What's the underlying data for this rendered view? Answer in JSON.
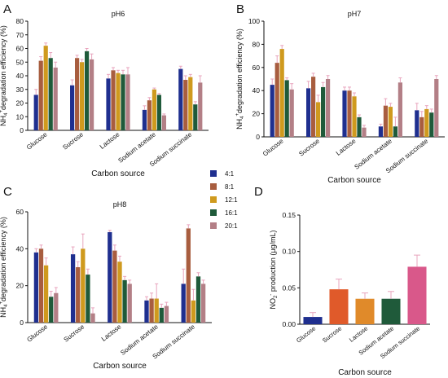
{
  "colors": {
    "series": [
      "#1f2f8f",
      "#a85d3f",
      "#cf9a1e",
      "#1f5a3a",
      "#b37f86"
    ],
    "panel_d": [
      "#1f2f8f",
      "#e05a2a",
      "#e08a2a",
      "#1f5a3a",
      "#d9588a"
    ],
    "error": "#e8a4bd"
  },
  "legend": [
    "4:1",
    "8:1",
    "12:1",
    "16:1",
    "20:1"
  ],
  "chart_data": [
    {
      "panel": "A",
      "type": "bar",
      "title": "pH6",
      "ylabel": "NH4+degradation efficiency (%)",
      "xlabel": "Carbon source",
      "ylim": [
        0,
        80
      ],
      "yticks": [
        0,
        10,
        20,
        30,
        40,
        50,
        60,
        70,
        80
      ],
      "categories": [
        "Glucose",
        "Sucrose",
        "Lactose",
        "Sodium acetate",
        "Sodium succinate"
      ],
      "series": [
        {
          "name": "4:1",
          "values": [
            26,
            33,
            38,
            15,
            45
          ],
          "errors": [
            4,
            4,
            3,
            3,
            2
          ]
        },
        {
          "name": "8:1",
          "values": [
            51,
            53,
            44,
            22,
            37
          ],
          "errors": [
            3,
            2,
            2,
            2,
            3
          ]
        },
        {
          "name": "12:1",
          "values": [
            62,
            50,
            42,
            30,
            39
          ],
          "errors": [
            2,
            2,
            2,
            1,
            2
          ]
        },
        {
          "name": "16:1",
          "values": [
            53,
            58,
            41,
            26,
            19
          ],
          "errors": [
            4,
            2,
            3,
            1,
            2
          ]
        },
        {
          "name": "20:1",
          "values": [
            46,
            52,
            41,
            11,
            35
          ],
          "errors": [
            4,
            4,
            5,
            1,
            5
          ]
        }
      ]
    },
    {
      "panel": "B",
      "type": "bar",
      "title": "pH7",
      "ylabel": "NH4+degradation efficiency (%)",
      "xlabel": "Carbon source",
      "ylim": [
        0,
        100
      ],
      "yticks": [
        0,
        20,
        40,
        60,
        80,
        100
      ],
      "categories": [
        "Glucose",
        "Sucrose",
        "Lactose",
        "Sodium acetate",
        "Sodium succinate"
      ],
      "series": [
        {
          "name": "4:1",
          "values": [
            45,
            42,
            40,
            9,
            23
          ],
          "errors": [
            5,
            6,
            3,
            2,
            6
          ]
        },
        {
          "name": "8:1",
          "values": [
            64,
            52,
            40,
            27,
            17
          ],
          "errors": [
            6,
            3,
            3,
            6,
            5
          ]
        },
        {
          "name": "12:1",
          "values": [
            76,
            30,
            35,
            26,
            24
          ],
          "errors": [
            3,
            6,
            3,
            3,
            3
          ]
        },
        {
          "name": "16:1",
          "values": [
            49,
            43,
            17,
            9,
            21
          ],
          "errors": [
            2,
            4,
            2,
            8,
            3
          ]
        },
        {
          "name": "20:1",
          "values": [
            41,
            50,
            8,
            47,
            50
          ],
          "errors": [
            5,
            3,
            2,
            4,
            3
          ]
        }
      ]
    },
    {
      "panel": "C",
      "type": "bar",
      "title": "pH8",
      "ylabel": "NH4+degradation efficiency (%)",
      "xlabel": "Carbon source",
      "ylim": [
        0,
        60
      ],
      "yticks": [
        0,
        20,
        40,
        60
      ],
      "categories": [
        "Glucose",
        "Sucrose",
        "Lactose",
        "Sodium acetate",
        "Sodium succinate"
      ],
      "series": [
        {
          "name": "4:1",
          "values": [
            38,
            37,
            49,
            12,
            21
          ],
          "errors": [
            2,
            4,
            1,
            2,
            8
          ]
        },
        {
          "name": "8:1",
          "values": [
            40,
            30,
            39,
            13,
            51
          ],
          "errors": [
            2,
            3,
            3,
            3,
            2
          ]
        },
        {
          "name": "12:1",
          "values": [
            31,
            40,
            33,
            13,
            12
          ],
          "errors": [
            4,
            8,
            3,
            8,
            6
          ]
        },
        {
          "name": "16:1",
          "values": [
            14,
            26,
            23,
            8,
            25
          ],
          "errors": [
            3,
            3,
            2,
            2,
            2
          ]
        },
        {
          "name": "20:1",
          "values": [
            16,
            5,
            21,
            9,
            21
          ],
          "errors": [
            3,
            3,
            2,
            2,
            2
          ]
        }
      ]
    },
    {
      "panel": "D",
      "type": "bar",
      "title": "",
      "ylabel": "NO2- production (μg/mL)",
      "xlabel": "Carbon source",
      "ylim": [
        0,
        0.15
      ],
      "yticks": [
        "0.00",
        "0.05",
        "0.10",
        "0.15"
      ],
      "categories": [
        "Glucose",
        "Sucrose",
        "Lactose",
        "Sodium acetate",
        "Sodium succinate"
      ],
      "values": [
        0.01,
        0.048,
        0.035,
        0.035,
        0.079
      ],
      "errors": [
        0.006,
        0.014,
        0.008,
        0.01,
        0.016
      ]
    }
  ]
}
